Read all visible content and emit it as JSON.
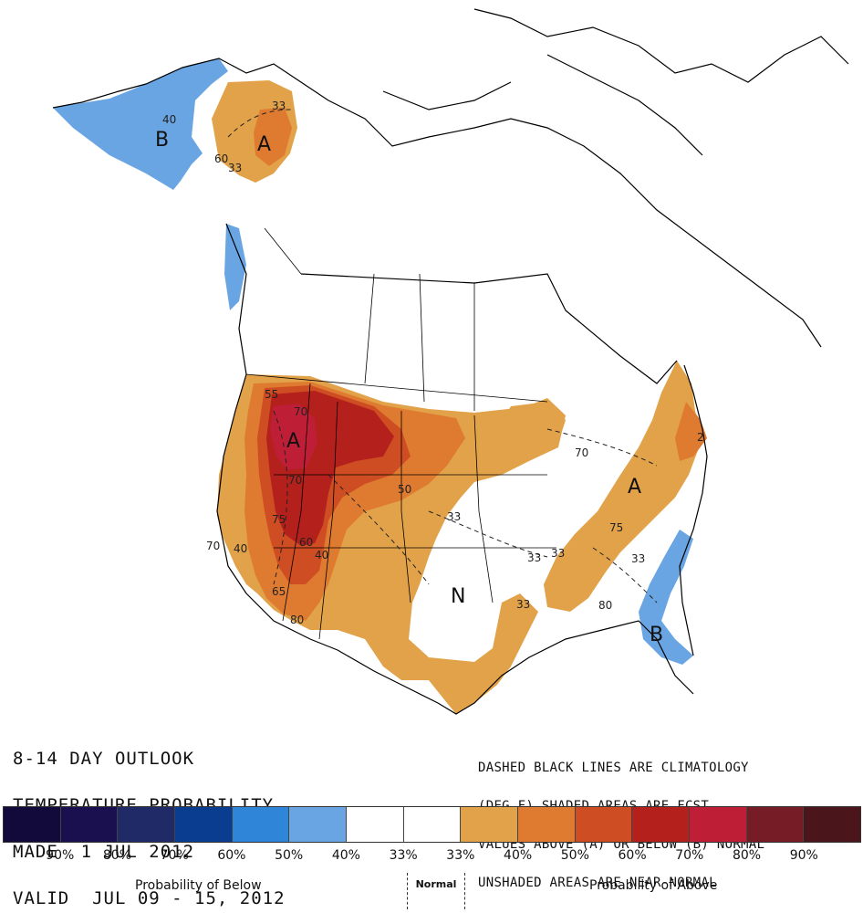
{
  "title": {
    "line1": "8-14 DAY OUTLOOK",
    "line2": "TEMPERATURE PROBABILITY",
    "line3": "MADE  1 JUL 2012",
    "line4": "VALID  JUL 09 - 15, 2012"
  },
  "note": {
    "line1": "DASHED BLACK LINES ARE CLIMATOLOGY",
    "line2": "(DEG F) SHADED AREAS ARE FCST",
    "line3": "VALUES ABOVE (A) OR BELOW (B) NORMAL",
    "line4": "UNSHADED AREAS ARE NEAR-NORMAL"
  },
  "legend": {
    "colors": [
      "#120a3a",
      "#1a1050",
      "#1f2a66",
      "#0a3d8f",
      "#2f86d8",
      "#6aa5e3",
      "#ffffff",
      "#ffffff",
      "#e2a24a",
      "#df7b30",
      "#cf4d22",
      "#b4201c",
      "#be1e36",
      "#761c26",
      "#4a161c"
    ],
    "ticks": [
      "90%",
      "80%",
      "70%",
      "60%",
      "50%",
      "40%",
      "33%",
      "33%",
      "40%",
      "50%",
      "60%",
      "70%",
      "80%",
      "90%"
    ],
    "below_label": "Probability of Below",
    "normal_label": "Normal",
    "above_label": "Probability of Above"
  },
  "map": {
    "letters": [
      "A",
      "A",
      "A",
      "B",
      "B",
      "N"
    ],
    "contour_labels": [
      "40",
      "33",
      "60",
      "33",
      "70",
      "55",
      "70",
      "75",
      "60",
      "40",
      "70",
      "40",
      "65",
      "80",
      "50",
      "33",
      "33",
      "33",
      "33",
      "33",
      "75",
      "70",
      "80",
      "2"
    ],
    "colors": {
      "above40": "#e2a24a",
      "above50": "#df7b30",
      "above60": "#cf4d22",
      "above70": "#b4201c",
      "above80": "#be1e36",
      "below40": "#6aa5e3",
      "below50": "#2f86d8",
      "outline": "#000000"
    }
  }
}
